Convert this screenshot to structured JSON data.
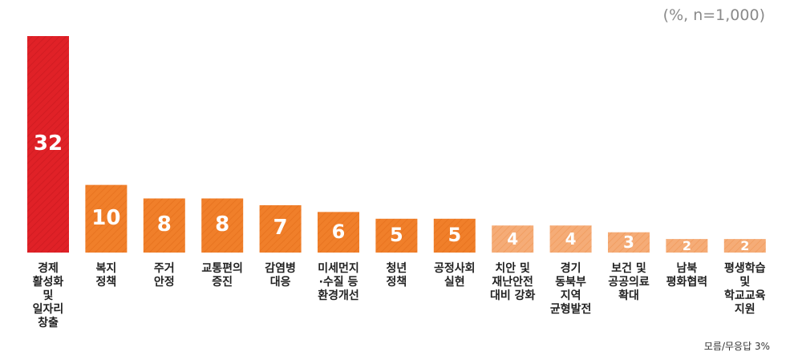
{
  "chart_data": {
    "type": "bar",
    "unit_label": "(%, n=1,000)",
    "footnote": "모름/무응답 3%",
    "categories": [
      "경제\n활성화\n및\n일자리\n창출",
      "복지\n정책",
      "주거\n안정",
      "교통편의\n증진",
      "감염병\n대응",
      "미세먼지\n·수질 등\n환경개선",
      "청년\n정책",
      "공정사회\n실현",
      "치안 및\n재난안전\n대비 강화",
      "경기\n동북부\n지역\n균형발전",
      "보건 및\n공공의료\n확대",
      "남북\n평화협력",
      "평생학습\n및\n학교교육\n지원"
    ],
    "values": [
      32,
      10,
      8,
      8,
      7,
      6,
      5,
      5,
      4,
      4,
      3,
      2,
      2
    ],
    "ylim": [
      0,
      32
    ],
    "colors": {
      "highlight": "#e02127",
      "mid": "#f07f2a",
      "low": "#f5ac77"
    },
    "color_groups": [
      "highlight",
      "mid",
      "mid",
      "mid",
      "mid",
      "mid",
      "mid",
      "mid",
      "low",
      "low",
      "low",
      "low",
      "low"
    ]
  }
}
